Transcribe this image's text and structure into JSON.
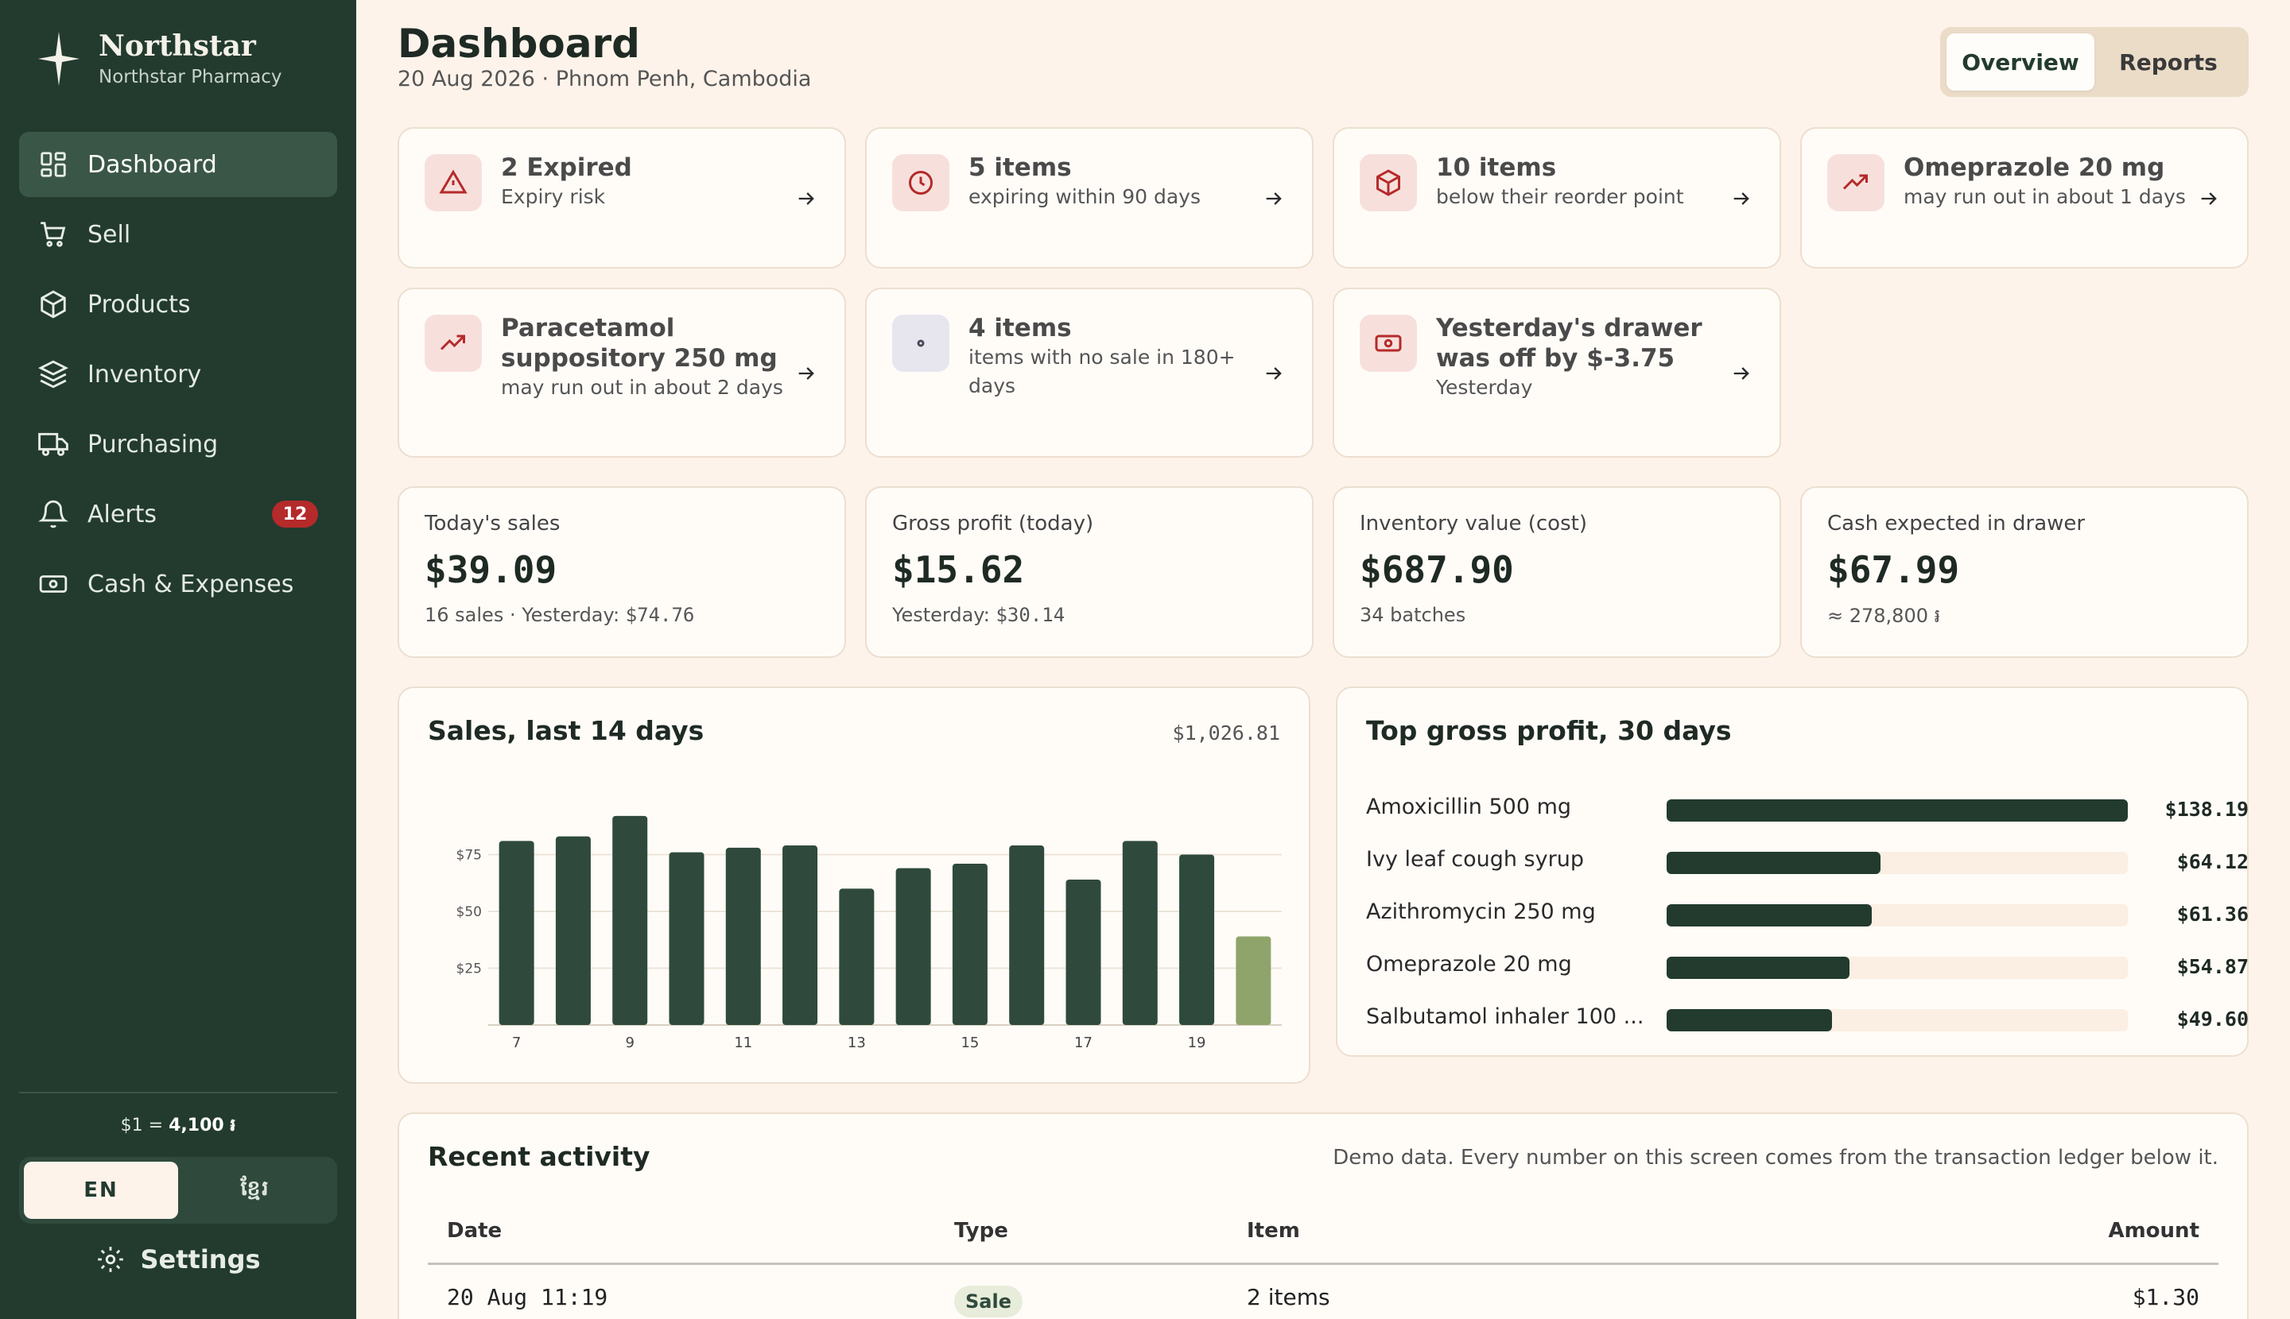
{
  "brand": {
    "name": "Northstar",
    "subtitle": "Northstar Pharmacy"
  },
  "nav": {
    "items": [
      {
        "label": "Dashboard",
        "icon": "grid-icon",
        "active": true
      },
      {
        "label": "Sell",
        "icon": "cart-icon"
      },
      {
        "label": "Products",
        "icon": "box-icon"
      },
      {
        "label": "Inventory",
        "icon": "layers-icon"
      },
      {
        "label": "Purchasing",
        "icon": "truck-icon"
      },
      {
        "label": "Alerts",
        "icon": "bell-icon",
        "badge": "12"
      },
      {
        "label": "Cash & Expenses",
        "icon": "cash-icon"
      }
    ]
  },
  "footer": {
    "rate_prefix": "$1 = ",
    "rate_value": "4,100 ៛",
    "lang_en": "EN",
    "lang_km": "ខ្មែរ",
    "settings_label": "Settings"
  },
  "header": {
    "title": "Dashboard",
    "subtitle": "20 Aug 2026 · Phnom Penh, Cambodia",
    "tabs": [
      "Overview",
      "Reports"
    ],
    "active_tab": "Overview"
  },
  "alerts": [
    {
      "title": "2 Expired",
      "desc": "Expiry risk",
      "icon": "warning-triangle-icon"
    },
    {
      "title": "5 items",
      "desc": "expiring within 90 days",
      "icon": "clock-icon"
    },
    {
      "title": "10 items",
      "desc": "below their reorder point",
      "icon": "box-icon"
    },
    {
      "title": "Omeprazole 20 mg",
      "desc": "may run out in about 1 days",
      "icon": "trend-up-icon"
    },
    {
      "title": "Paracetamol suppository 250 mg",
      "desc": "may run out in about 2 days",
      "icon": "trend-up-icon"
    },
    {
      "title": "4 items",
      "desc": "items with no sale in 180+ days",
      "icon": "dot-icon"
    },
    {
      "title": "Yesterday's drawer was off by $-3.75",
      "desc": "Yesterday",
      "icon": "cash-icon"
    }
  ],
  "stats": [
    {
      "label": "Today's sales",
      "value": "$39.09",
      "foot_text": "16 sales · Yesterday: ",
      "foot_value": "$74.76"
    },
    {
      "label": "Gross profit (today)",
      "value": "$15.62",
      "foot_text": "Yesterday: ",
      "foot_value": "$30.14"
    },
    {
      "label": "Inventory value (cost)",
      "value": "$687.90",
      "foot_text": "34 batches",
      "foot_value": ""
    },
    {
      "label": "Cash expected in drawer",
      "value": "$67.99",
      "foot_text": "≈ 278,800 ៛",
      "foot_value": ""
    }
  ],
  "sales_panel": {
    "title": "Sales, last 14 days",
    "total": "$1,026.81"
  },
  "chart_data": {
    "type": "bar",
    "title": "Sales, last 14 days",
    "categories": [
      "7",
      "8",
      "9",
      "10",
      "11",
      "12",
      "13",
      "14",
      "15",
      "16",
      "17",
      "18",
      "19",
      "20"
    ],
    "x_tick_labels": [
      "7",
      "9",
      "11",
      "13",
      "15",
      "17",
      "19"
    ],
    "values": [
      81,
      83,
      92,
      76,
      78,
      79,
      60,
      69,
      71,
      79,
      64,
      81,
      75,
      39
    ],
    "y_ticks": [
      "$25",
      "$50",
      "$75"
    ],
    "ylim": [
      0,
      100
    ],
    "colors": {
      "bar": "#2f4a3c",
      "today": "#8fa46b"
    },
    "grid": true
  },
  "top_profit": {
    "title": "Top gross profit, 30 days",
    "items": [
      {
        "name": "Amoxicillin 500 mg",
        "value": "$138.19",
        "amount": 138.19
      },
      {
        "name": "Ivy leaf cough syrup",
        "value": "$64.12",
        "amount": 64.12
      },
      {
        "name": "Azithromycin 250 mg",
        "value": "$61.36",
        "amount": 61.36
      },
      {
        "name": "Omeprazole 20 mg",
        "value": "$54.87",
        "amount": 54.87
      },
      {
        "name": "Salbutamol inhaler 100 ...",
        "value": "$49.60",
        "amount": 49.6
      }
    ]
  },
  "recent": {
    "title": "Recent activity",
    "note": "Demo data. Every number on this screen comes from the transaction ledger below it.",
    "columns": [
      "Date",
      "Type",
      "Item",
      "Amount"
    ],
    "rows": [
      {
        "date": "20 Aug 11:19",
        "type": "Sale",
        "item": "2 items",
        "amount": "$1.30"
      }
    ]
  },
  "colors": {
    "sidebar": "#223b2e",
    "background": "#fdf3ea",
    "accent": "#223b2e",
    "alert": "#b52a2a"
  }
}
